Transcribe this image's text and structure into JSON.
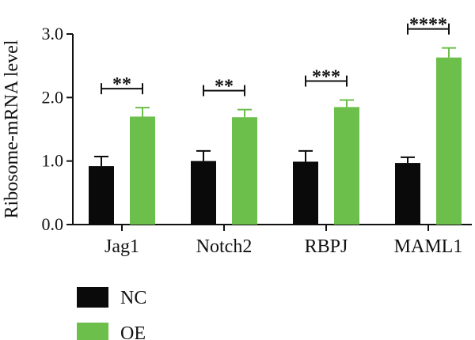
{
  "chart_data": {
    "type": "bar",
    "ylabel": "Ribosome-mRNA level",
    "ylim": [
      0,
      3.0
    ],
    "yticks": [
      0.0,
      1.0,
      2.0,
      3.0
    ],
    "ytick_labels": [
      "0.0",
      "1.0",
      "2.0",
      "3.0"
    ],
    "categories": [
      "Jag1",
      "Notch2",
      "RBPJ",
      "MAML1"
    ],
    "series": [
      {
        "name": "NC",
        "color": "#0a0a0a",
        "values": [
          0.92,
          1.0,
          0.99,
          0.97
        ],
        "errors": [
          0.15,
          0.16,
          0.17,
          0.09
        ]
      },
      {
        "name": "OE",
        "color": "#6cbf4b",
        "values": [
          1.7,
          1.69,
          1.85,
          2.63
        ],
        "errors": [
          0.14,
          0.12,
          0.11,
          0.15
        ]
      }
    ],
    "significance": [
      "**",
      "**",
      "***",
      "****"
    ],
    "legend_position": "bottom-left"
  }
}
